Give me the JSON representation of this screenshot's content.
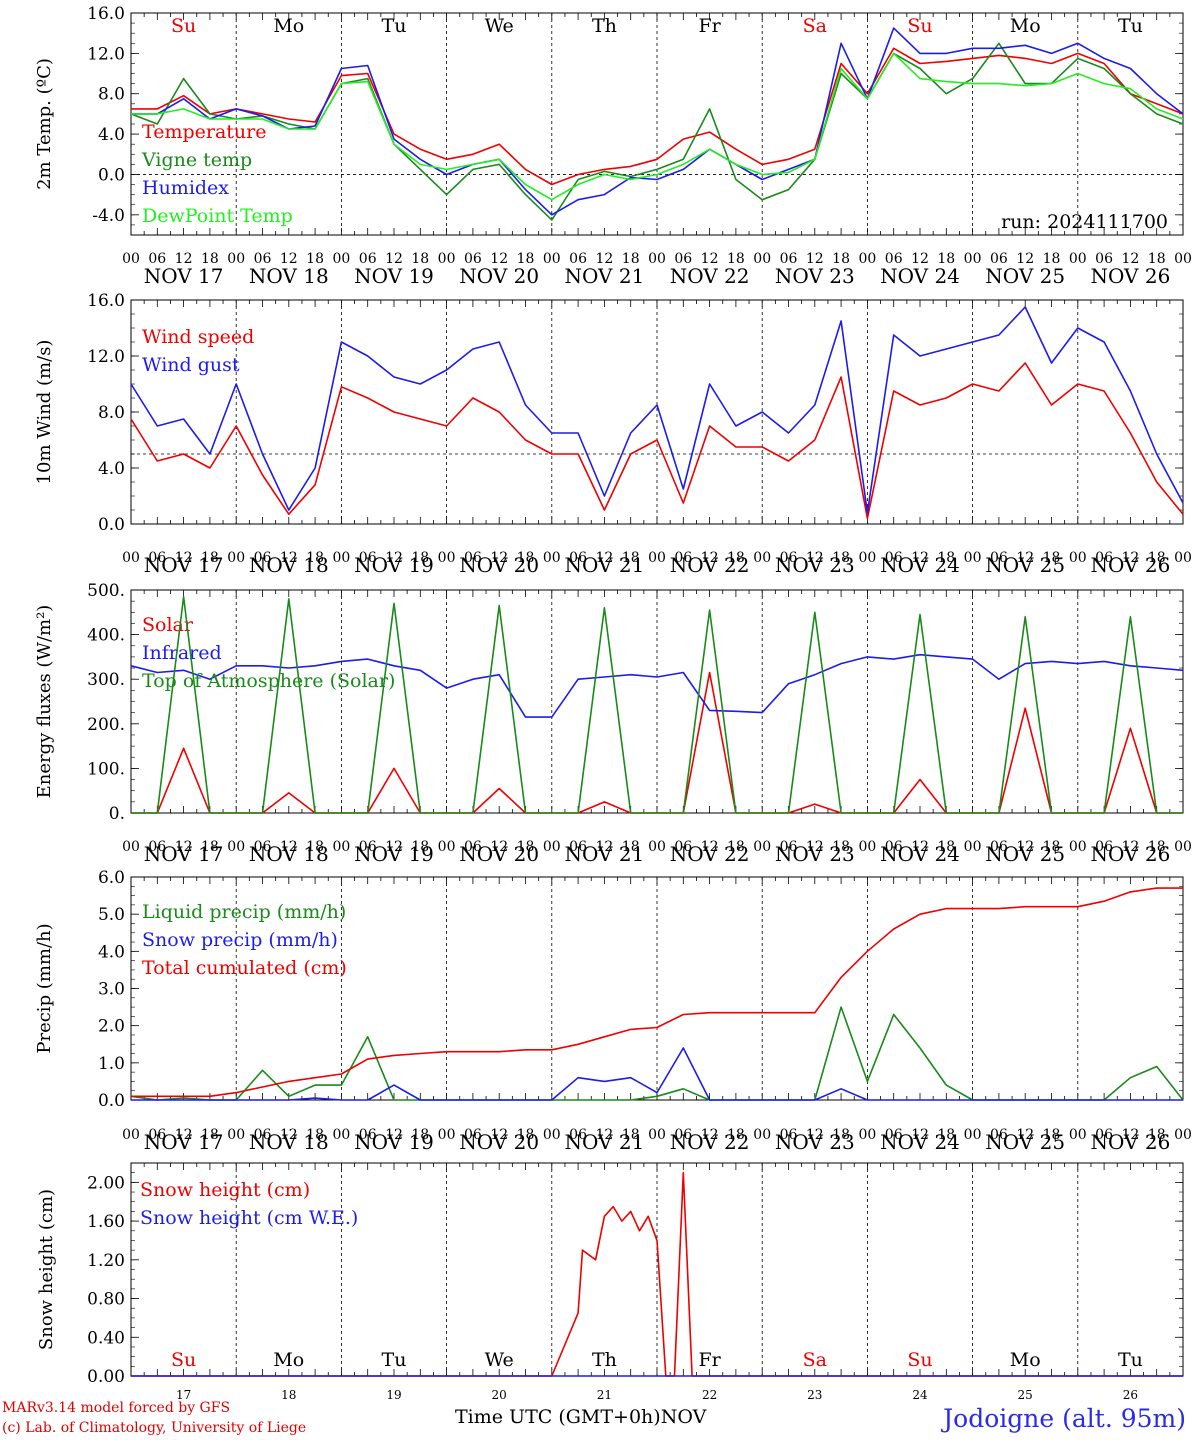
{
  "colors": {
    "red": "#ee0000",
    "green": "#1a8a1a",
    "blue": "#1c1cee",
    "lightgreen": "#22ee22",
    "black": "#000000"
  },
  "footer": {
    "credit1": "MARv3.14 model forced by GFS",
    "credit2": "(c) Lab. of Climatology, University of Liege",
    "xaxis_title": "Time UTC (GMT+0h)",
    "xaxis_unit": "NOV",
    "station": "Jodoigne (alt. 95m)"
  },
  "days": {
    "abbrevs": [
      "Su",
      "Mo",
      "Tu",
      "We",
      "Th",
      "Fr",
      "Sa",
      "Su",
      "Mo",
      "Tu"
    ],
    "weekend": [
      true,
      false,
      false,
      false,
      false,
      false,
      true,
      true,
      false,
      false
    ],
    "date_labels": [
      "NOV 17",
      "NOV 18",
      "NOV 19",
      "NOV 20",
      "NOV 21",
      "NOV 22",
      "NOV 23",
      "NOV 24",
      "NOV 25",
      "NOV 26"
    ],
    "numbers": [
      "17",
      "18",
      "19",
      "20",
      "21",
      "22",
      "23",
      "24",
      "25",
      "26"
    ],
    "hour_ticks": [
      "00",
      "06",
      "12",
      "18"
    ],
    "final_tick": "00"
  },
  "chart_data": [
    {
      "type": "line",
      "ylabel": "2m Temp. (ºC)",
      "ylim": [
        -6,
        16
      ],
      "ytick_labels": [
        "-4.0",
        "0.0",
        "4.0",
        "8.0",
        "12.0",
        "16.0"
      ],
      "ytick_values": [
        -4,
        0,
        4,
        8,
        12,
        16
      ],
      "dashed_ref": 0,
      "annotation": "run: 2024111700",
      "x_hours": [
        0,
        6,
        12,
        18,
        24,
        30,
        36,
        42,
        48,
        54,
        60,
        66,
        72,
        78,
        84,
        90,
        96,
        102,
        108,
        114,
        120,
        126,
        132,
        138,
        144,
        150,
        156,
        162,
        168,
        174,
        180,
        186,
        192,
        198,
        204,
        210,
        216,
        222,
        228,
        234,
        240
      ],
      "series": [
        {
          "name": "Temperature",
          "color": "red",
          "values": [
            6.5,
            6.5,
            7.8,
            6.0,
            6.5,
            6.0,
            5.5,
            5.2,
            9.8,
            10.0,
            4.0,
            2.5,
            1.5,
            2.0,
            3.0,
            0.5,
            -1.0,
            0.0,
            0.5,
            0.8,
            1.5,
            3.5,
            4.2,
            2.5,
            1.0,
            1.5,
            2.5,
            11.0,
            8.0,
            12.5,
            11.0,
            11.2,
            11.5,
            11.8,
            11.5,
            11.0,
            12.0,
            11.0,
            8.0,
            7.0,
            6.0
          ]
        },
        {
          "name": "Vigne temp",
          "color": "green",
          "values": [
            6.0,
            5.0,
            9.5,
            6.0,
            5.5,
            5.8,
            5.0,
            4.5,
            9.0,
            9.5,
            3.0,
            0.5,
            -2.0,
            0.5,
            1.0,
            -2.0,
            -4.5,
            -0.5,
            0.3,
            -0.2,
            0.5,
            1.5,
            6.5,
            -0.5,
            -2.5,
            -1.5,
            1.5,
            10.0,
            7.5,
            12.0,
            10.5,
            8.0,
            9.5,
            13.0,
            9.0,
            9.0,
            11.5,
            10.5,
            8.0,
            6.0,
            5.0
          ]
        },
        {
          "name": "Humidex",
          "color": "blue",
          "values": [
            6.0,
            6.0,
            7.5,
            5.5,
            6.5,
            5.8,
            4.5,
            4.8,
            10.5,
            10.8,
            3.5,
            1.5,
            0.0,
            1.0,
            1.5,
            -1.5,
            -4.0,
            -2.5,
            -2.0,
            -0.3,
            -0.5,
            0.5,
            2.5,
            1.0,
            -0.5,
            0.5,
            1.5,
            13.0,
            7.5,
            14.5,
            12.0,
            12.0,
            12.5,
            12.5,
            12.8,
            12.0,
            13.0,
            11.5,
            10.5,
            8.0,
            6.0
          ]
        },
        {
          "name": "DewPoint Temp",
          "color": "lightgreen",
          "values": [
            6.0,
            6.0,
            6.5,
            5.5,
            5.5,
            5.5,
            4.5,
            4.5,
            9.0,
            9.2,
            3.0,
            1.0,
            0.5,
            1.0,
            1.5,
            -1.0,
            -2.5,
            -1.0,
            0.0,
            -0.5,
            0.0,
            1.0,
            2.5,
            1.0,
            0.0,
            0.2,
            1.5,
            10.5,
            7.5,
            12.0,
            9.5,
            9.2,
            9.0,
            9.0,
            8.8,
            9.0,
            10.0,
            9.0,
            8.5,
            6.5,
            5.5
          ]
        }
      ]
    },
    {
      "type": "line",
      "ylabel": "10m Wind (m/s)",
      "ylim": [
        0,
        16
      ],
      "ytick_labels": [
        "0.0",
        "4.0",
        "8.0",
        "12.0",
        "16.0"
      ],
      "ytick_values": [
        0,
        4,
        8,
        12,
        16
      ],
      "dashed_ref": 5,
      "x_hours": [
        0,
        6,
        12,
        18,
        24,
        30,
        36,
        42,
        48,
        54,
        60,
        66,
        72,
        78,
        84,
        90,
        96,
        102,
        108,
        114,
        120,
        126,
        132,
        138,
        144,
        150,
        156,
        162,
        168,
        174,
        180,
        186,
        192,
        198,
        204,
        210,
        216,
        222,
        228,
        234,
        240
      ],
      "series": [
        {
          "name": "Wind speed",
          "color": "red",
          "values": [
            7.5,
            4.5,
            5.0,
            4.0,
            7.0,
            3.5,
            0.7,
            2.8,
            9.8,
            9.0,
            8.0,
            7.5,
            7.0,
            9.0,
            8.0,
            6.0,
            5.0,
            5.0,
            1.0,
            5.0,
            6.0,
            1.5,
            7.0,
            5.5,
            5.5,
            4.5,
            6.0,
            10.5,
            0.4,
            9.5,
            8.5,
            9.0,
            10.0,
            9.5,
            11.5,
            8.5,
            10.0,
            9.5,
            6.5,
            3.0,
            0.7
          ]
        },
        {
          "name": "Wind gust",
          "color": "blue",
          "values": [
            10.0,
            7.0,
            7.5,
            5.0,
            10.0,
            5.0,
            1.0,
            4.0,
            13.0,
            12.0,
            10.5,
            10.0,
            11.0,
            12.5,
            13.0,
            8.5,
            6.5,
            6.5,
            2.0,
            6.5,
            8.5,
            2.5,
            10.0,
            7.0,
            8.0,
            6.5,
            8.5,
            14.5,
            0.8,
            13.5,
            12.0,
            12.5,
            13.0,
            13.5,
            15.5,
            11.5,
            14.0,
            13.0,
            9.5,
            5.0,
            1.5
          ]
        }
      ]
    },
    {
      "type": "line",
      "ylabel": "Energy fluxes (W/m²)",
      "ylim": [
        0,
        500
      ],
      "ytick_labels": [
        "0.",
        "100.",
        "200.",
        "300.",
        "400.",
        "500."
      ],
      "ytick_values": [
        0,
        100,
        200,
        300,
        400,
        500
      ],
      "x_hours": [
        0,
        6,
        12,
        18,
        24,
        30,
        36,
        42,
        48,
        54,
        60,
        66,
        72,
        78,
        84,
        90,
        96,
        102,
        108,
        114,
        120,
        126,
        132,
        138,
        144,
        150,
        156,
        162,
        168,
        174,
        180,
        186,
        192,
        198,
        204,
        210,
        216,
        222,
        228,
        234,
        240
      ],
      "series": [
        {
          "name": "Solar",
          "color": "red",
          "values": [
            0,
            0,
            145,
            0,
            0,
            0,
            45,
            0,
            0,
            0,
            100,
            0,
            0,
            0,
            55,
            0,
            0,
            0,
            25,
            0,
            0,
            0,
            315,
            0,
            0,
            0,
            20,
            0,
            0,
            0,
            75,
            0,
            0,
            0,
            235,
            0,
            0,
            0,
            190,
            0,
            0
          ]
        },
        {
          "name": "Infrared",
          "color": "blue",
          "values": [
            330,
            315,
            320,
            300,
            330,
            330,
            325,
            330,
            340,
            345,
            330,
            320,
            280,
            300,
            310,
            215,
            215,
            300,
            305,
            310,
            305,
            315,
            230,
            228,
            225,
            290,
            310,
            335,
            350,
            345,
            355,
            350,
            345,
            300,
            335,
            340,
            335,
            340,
            330,
            325,
            320
          ]
        },
        {
          "name": "Top of Atmosphere (Solar)",
          "color": "green",
          "values": [
            0,
            0,
            485,
            0,
            0,
            0,
            480,
            0,
            0,
            0,
            470,
            0,
            0,
            0,
            465,
            0,
            0,
            0,
            460,
            0,
            0,
            0,
            455,
            0,
            0,
            0,
            450,
            0,
            0,
            0,
            445,
            0,
            0,
            0,
            440,
            0,
            0,
            0,
            440,
            0,
            0
          ]
        }
      ]
    },
    {
      "type": "line",
      "ylabel": "Precip (mm/h)",
      "ylim": [
        0,
        6
      ],
      "ytick_labels": [
        "0.0",
        "1.0",
        "2.0",
        "3.0",
        "4.0",
        "5.0",
        "6.0"
      ],
      "ytick_values": [
        0,
        1,
        2,
        3,
        4,
        5,
        6
      ],
      "x_hours": [
        0,
        6,
        12,
        18,
        24,
        30,
        36,
        42,
        48,
        54,
        60,
        66,
        72,
        78,
        84,
        90,
        96,
        102,
        108,
        114,
        120,
        126,
        132,
        138,
        144,
        150,
        156,
        162,
        168,
        174,
        180,
        186,
        192,
        198,
        204,
        210,
        216,
        222,
        228,
        234,
        240
      ],
      "series": [
        {
          "name": "Liquid precip (mm/h)",
          "color": "green",
          "values": [
            0.1,
            0,
            0.05,
            0,
            0,
            0.8,
            0.1,
            0.4,
            0.4,
            1.7,
            0,
            0,
            0,
            0,
            0,
            0,
            0,
            0,
            0,
            0,
            0.1,
            0.3,
            0,
            0,
            0,
            0,
            0,
            2.5,
            0.5,
            2.3,
            1.4,
            0.4,
            0,
            0,
            0,
            0,
            0,
            0,
            0.6,
            0.9,
            0
          ]
        },
        {
          "name": "Snow precip (mm/h)",
          "color": "blue",
          "values": [
            0,
            0,
            0,
            0,
            0,
            0,
            0,
            0.05,
            0,
            0,
            0.4,
            0,
            0,
            0,
            0,
            0,
            0,
            0.6,
            0.5,
            0.6,
            0.2,
            1.4,
            0,
            0,
            0,
            0,
            0,
            0.3,
            0,
            0,
            0,
            0,
            0,
            0,
            0,
            0,
            0,
            0,
            0,
            0,
            0
          ]
        },
        {
          "name": "Total cumulated (cm)",
          "color": "red",
          "values": [
            0.1,
            0.1,
            0.1,
            0.1,
            0.2,
            0.35,
            0.5,
            0.6,
            0.7,
            1.1,
            1.2,
            1.25,
            1.3,
            1.3,
            1.3,
            1.35,
            1.35,
            1.5,
            1.7,
            1.9,
            1.95,
            2.3,
            2.35,
            2.35,
            2.35,
            2.35,
            2.35,
            3.3,
            4.0,
            4.6,
            5.0,
            5.15,
            5.15,
            5.15,
            5.2,
            5.2,
            5.2,
            5.35,
            5.6,
            5.7,
            5.7
          ]
        }
      ]
    },
    {
      "type": "line",
      "ylabel": "Snow height (cm)",
      "ylim": [
        0,
        2.2
      ],
      "ytick_labels": [
        "0.00",
        "0.40",
        "0.80",
        "1.20",
        "1.60",
        "2.00"
      ],
      "ytick_values": [
        0,
        0.4,
        0.8,
        1.2,
        1.6,
        2.0
      ],
      "x_hours": [
        0,
        96,
        102,
        103,
        106,
        108,
        110,
        112,
        114,
        116,
        118,
        120,
        122,
        124,
        126,
        128,
        240
      ],
      "series": [
        {
          "name": "Snow height (cm)",
          "color": "red",
          "values": [
            0,
            0,
            0.65,
            1.3,
            1.2,
            1.65,
            1.75,
            1.6,
            1.7,
            1.5,
            1.65,
            1.4,
            0,
            0,
            2.1,
            0,
            0
          ]
        },
        {
          "name": "Snow height (cm W.E.)",
          "color": "blue",
          "values": [
            0,
            0,
            0,
            0,
            0,
            0,
            0,
            0,
            0,
            0,
            0,
            0,
            0,
            0,
            0,
            0,
            0
          ]
        }
      ]
    }
  ]
}
